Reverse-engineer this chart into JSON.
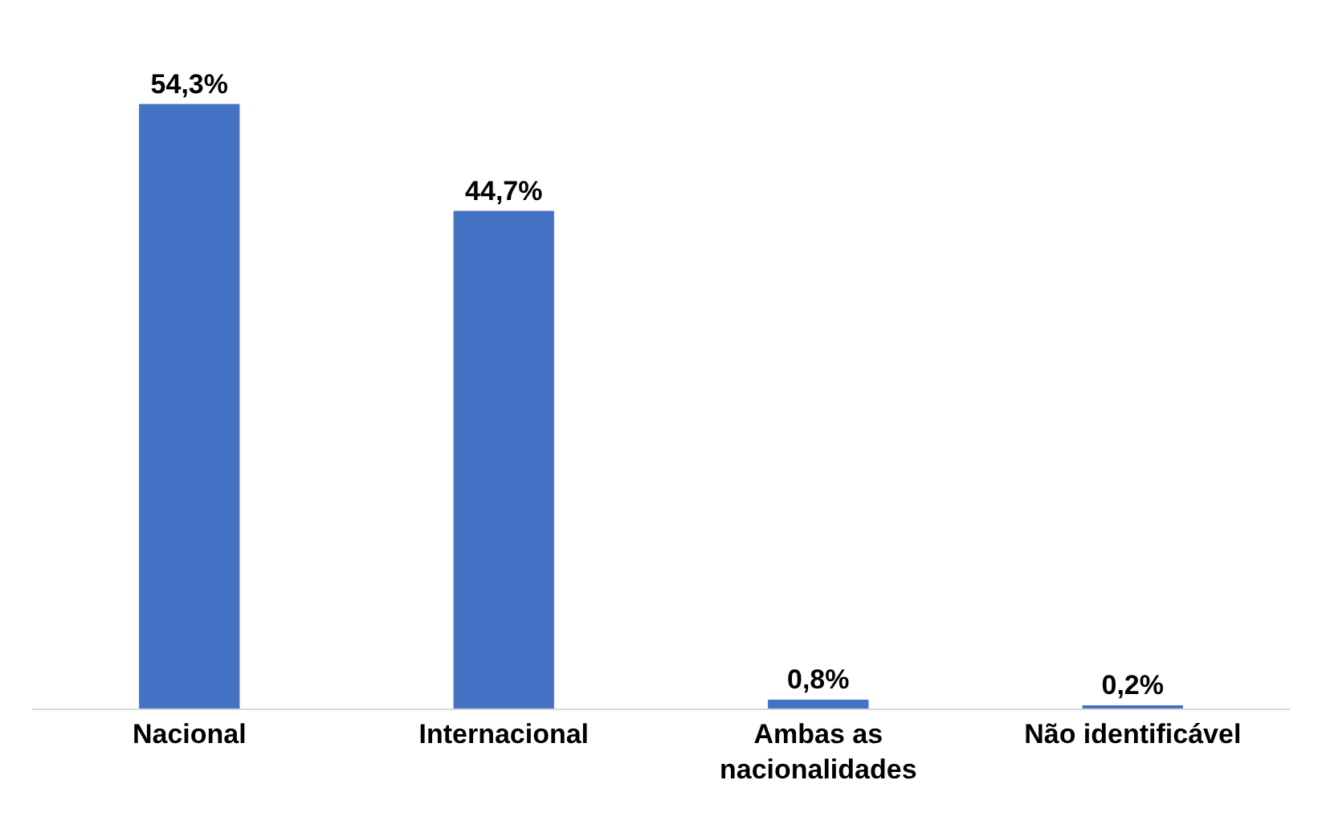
{
  "chart_data": {
    "type": "bar",
    "categories": [
      "Nacional",
      "Internacional",
      "Ambas as nacionalidades",
      "Não identificável"
    ],
    "values": [
      54.3,
      44.7,
      0.8,
      0.2
    ],
    "value_labels": [
      "54,3%",
      "44,7%",
      "0,8%",
      "0,2%"
    ],
    "color": "#4472c4"
  }
}
